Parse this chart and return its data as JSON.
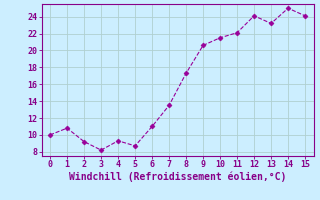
{
  "x": [
    0,
    1,
    2,
    3,
    4,
    5,
    6,
    7,
    8,
    9,
    10,
    11,
    12,
    13,
    14,
    15
  ],
  "y": [
    10.0,
    10.8,
    9.2,
    8.2,
    9.3,
    8.7,
    11.0,
    13.5,
    17.3,
    20.6,
    21.5,
    22.1,
    24.1,
    23.2,
    25.0,
    24.1
  ],
  "line_color": "#990099",
  "marker": "D",
  "marker_size": 2.5,
  "xlabel": "Windchill (Refroidissement éolien,°C)",
  "xlim": [
    -0.5,
    15.5
  ],
  "ylim": [
    7.5,
    25.5
  ],
  "yticks": [
    8,
    10,
    12,
    14,
    16,
    18,
    20,
    22,
    24
  ],
  "xticks": [
    0,
    1,
    2,
    3,
    4,
    5,
    6,
    7,
    8,
    9,
    10,
    11,
    12,
    13,
    14,
    15
  ],
  "bg_color": "#cceeff",
  "grid_color": "#b0d0d0",
  "font_color": "#880088",
  "font_size_ticks": 6,
  "font_size_xlabel": 7
}
